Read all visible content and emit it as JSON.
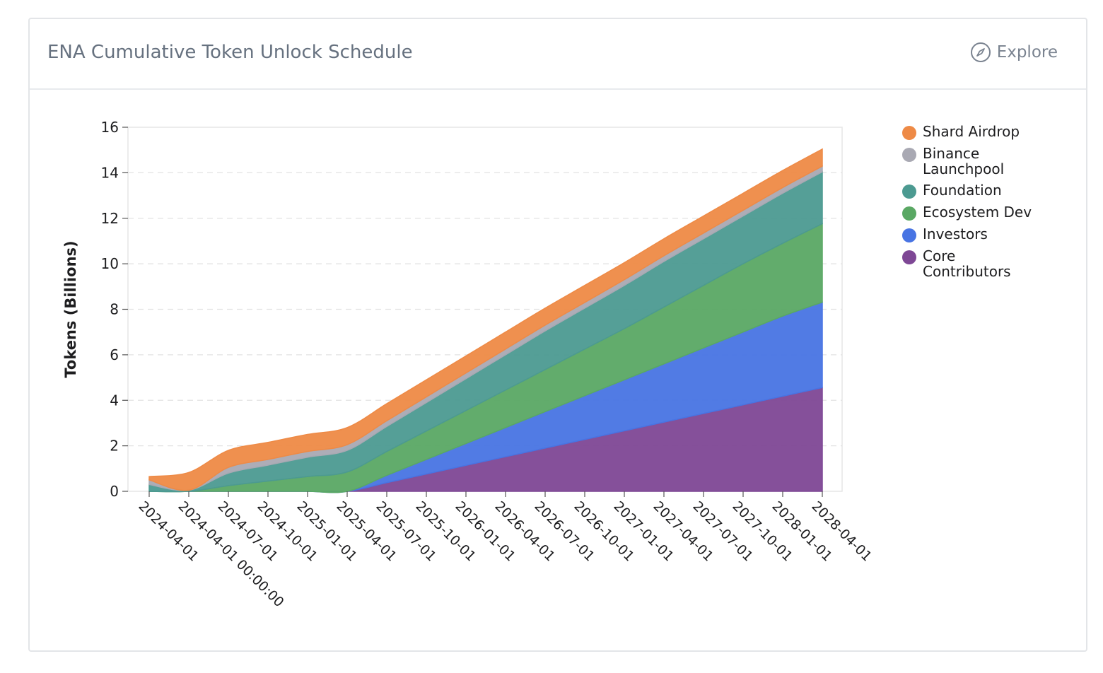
{
  "header": {
    "title": "ENA Cumulative Token Unlock Schedule",
    "explore_label": "Explore",
    "explore_icon": "compass-icon"
  },
  "chart_data": {
    "type": "area",
    "stacked": true,
    "title": "ENA Cumulative Token Unlock Schedule",
    "xlabel": "",
    "ylabel": "Tokens (Billions)",
    "ylim": [
      0,
      16
    ],
    "yticks": [
      0,
      2,
      4,
      6,
      8,
      10,
      12,
      14,
      16
    ],
    "grid": true,
    "legend_position": "right",
    "x": [
      "2024-04-01",
      "2024-04-01 00:00:00",
      "2024-07-01",
      "2024-10-01",
      "2025-01-01",
      "2025-04-01",
      "2025-07-01",
      "2025-10-01",
      "2026-01-01",
      "2026-04-01",
      "2026-07-01",
      "2026-10-01",
      "2027-01-01",
      "2027-04-01",
      "2027-07-01",
      "2027-10-01",
      "2028-01-01",
      "2028-04-01"
    ],
    "series": [
      {
        "name": "Core Contributors",
        "color": "#7e4795",
        "values": [
          0,
          0,
          0,
          0,
          0,
          0,
          0.38,
          0.76,
          1.14,
          1.52,
          1.9,
          2.28,
          2.66,
          3.04,
          3.42,
          3.8,
          4.18,
          4.56
        ]
      },
      {
        "name": "Investors",
        "color": "#4874e3",
        "values": [
          0,
          0,
          0,
          0,
          0,
          0,
          0.32,
          0.64,
          0.96,
          1.28,
          1.6,
          1.92,
          2.24,
          2.56,
          2.88,
          3.2,
          3.52,
          3.75
        ]
      },
      {
        "name": "Ecosystem Dev",
        "color": "#5aa864",
        "values": [
          0,
          0,
          0.25,
          0.45,
          0.65,
          0.85,
          1.05,
          1.25,
          1.45,
          1.65,
          1.85,
          2.05,
          2.25,
          2.5,
          2.75,
          3.0,
          3.2,
          3.45
        ]
      },
      {
        "name": "Foundation",
        "color": "#4c9a91",
        "values": [
          0.3,
          0.05,
          0.55,
          0.7,
          0.85,
          0.95,
          1.1,
          1.25,
          1.4,
          1.55,
          1.7,
          1.8,
          1.9,
          2.0,
          2.05,
          2.1,
          2.2,
          2.28
        ]
      },
      {
        "name": "Binance Launchpool",
        "color": "#a9a9b3",
        "values": [
          0.2,
          0.0,
          0.25,
          0.25,
          0.25,
          0.25,
          0.25,
          0.25,
          0.25,
          0.25,
          0.25,
          0.25,
          0.25,
          0.25,
          0.25,
          0.25,
          0.25,
          0.25
        ]
      },
      {
        "name": "Shard Airdrop",
        "color": "#ee8a46",
        "values": [
          0.15,
          0.78,
          0.75,
          0.75,
          0.75,
          0.75,
          0.75,
          0.75,
          0.75,
          0.75,
          0.75,
          0.75,
          0.75,
          0.75,
          0.75,
          0.75,
          0.75,
          0.75
        ]
      }
    ]
  },
  "legend": {
    "items": [
      {
        "label": "Shard Airdrop",
        "color": "#ee8a46"
      },
      {
        "label": "Binance Launchpool",
        "color": "#a9a9b3"
      },
      {
        "label": "Foundation",
        "color": "#4c9a91"
      },
      {
        "label": "Ecosystem Dev",
        "color": "#5aa864"
      },
      {
        "label": "Investors",
        "color": "#4874e3"
      },
      {
        "label": "Core Contributors",
        "color": "#7e4795"
      }
    ]
  }
}
